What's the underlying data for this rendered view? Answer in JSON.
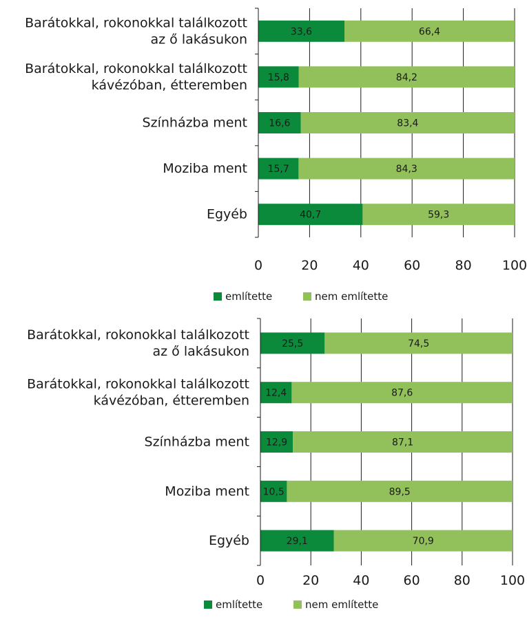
{
  "colors": {
    "mentioned": "#0b8a3c",
    "not_mentioned": "#92c05b",
    "grid": "#1a1a1a",
    "text": "#1a1a1a"
  },
  "chart_data": [
    {
      "type": "bar",
      "orientation": "horizontal",
      "stacked": true,
      "categories": [
        [
          "Barátokkal, rokonokkal találkozott",
          "az ő lakásukon"
        ],
        [
          "Barátokkal, rokonokkal találkozott",
          "kávézóban, étteremben"
        ],
        [
          "Színházba ment"
        ],
        [
          "Moziba ment"
        ],
        [
          "Egyéb"
        ]
      ],
      "series": [
        {
          "name": "említette",
          "values": [
            33.6,
            15.8,
            16.6,
            15.7,
            40.7
          ],
          "labels": [
            "33,6",
            "15,8",
            "16,6",
            "15,7",
            "40,7"
          ]
        },
        {
          "name": "nem említette",
          "values": [
            66.4,
            84.2,
            83.4,
            84.3,
            59.3
          ],
          "labels": [
            "66,4",
            "84,2",
            "83,4",
            "84,3",
            "59,3"
          ]
        }
      ],
      "xlim": [
        0,
        100
      ],
      "xticks": [
        "0",
        "20",
        "40",
        "60",
        "80",
        "100"
      ],
      "grid": true,
      "legend": "bottom"
    },
    {
      "type": "bar",
      "orientation": "horizontal",
      "stacked": true,
      "categories": [
        [
          "Barátokkal, rokonokkal találkozott",
          "az ő lakásukon"
        ],
        [
          "Barátokkal, rokonokkal találkozott",
          "kávézóban, étteremben"
        ],
        [
          "Színházba ment"
        ],
        [
          "Moziba ment"
        ],
        [
          "Egyéb"
        ]
      ],
      "series": [
        {
          "name": "említette",
          "values": [
            25.5,
            12.4,
            12.9,
            10.5,
            29.1
          ],
          "labels": [
            "25,5",
            "12,4",
            "12,9",
            "10,5",
            "29,1"
          ]
        },
        {
          "name": "nem említette",
          "values": [
            74.5,
            87.6,
            87.1,
            89.5,
            70.9
          ],
          "labels": [
            "74,5",
            "87,6",
            "87,1",
            "89,5",
            "70,9"
          ]
        }
      ],
      "xlim": [
        0,
        100
      ],
      "xticks": [
        "0",
        "20",
        "40",
        "60",
        "80",
        "100"
      ],
      "grid": true,
      "legend": "bottom"
    }
  ]
}
